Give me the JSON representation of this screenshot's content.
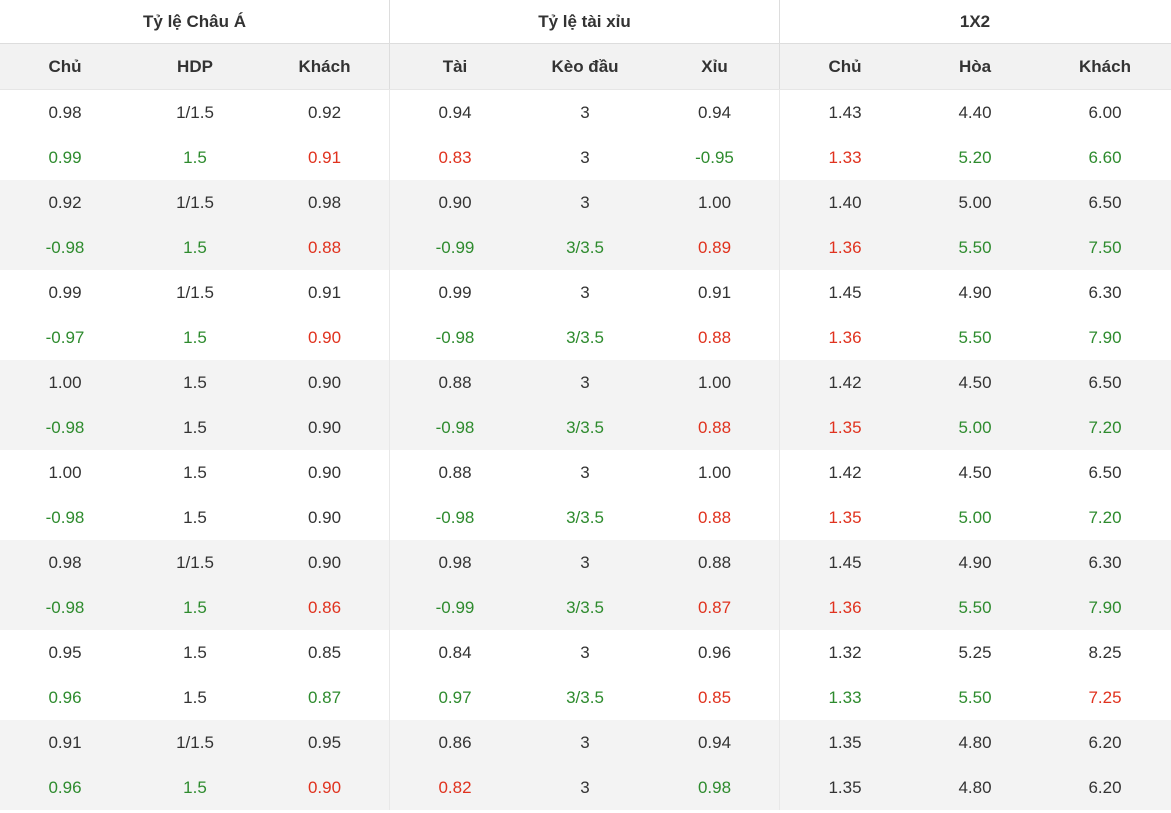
{
  "groups": [
    "Tỷ lệ Châu Á",
    "Tỷ lệ tài xỉu",
    "1X2"
  ],
  "columns": [
    "Chủ",
    "HDP",
    "Khách",
    "Tài",
    "Kèo đầu",
    "Xỉu",
    "Chủ",
    "Hòa",
    "Khách"
  ],
  "colors": {
    "up": "#2e8b2e",
    "down": "#e0321e",
    "alt_row": "#f3f3f3",
    "header_bg": "#f2f2f2"
  },
  "rows": [
    {
      "opening": [
        "0.98",
        "1/1.5",
        "0.92",
        "0.94",
        "3",
        "0.94",
        "1.43",
        "4.40",
        "6.00"
      ],
      "current": [
        {
          "v": "0.99",
          "t": "up"
        },
        {
          "v": "1.5",
          "t": "up"
        },
        {
          "v": "0.91",
          "t": "down"
        },
        {
          "v": "0.83",
          "t": "down"
        },
        {
          "v": "3",
          "t": ""
        },
        {
          "v": "-0.95",
          "t": "up"
        },
        {
          "v": "1.33",
          "t": "down"
        },
        {
          "v": "5.20",
          "t": "up"
        },
        {
          "v": "6.60",
          "t": "up"
        }
      ]
    },
    {
      "opening": [
        "0.92",
        "1/1.5",
        "0.98",
        "0.90",
        "3",
        "1.00",
        "1.40",
        "5.00",
        "6.50"
      ],
      "current": [
        {
          "v": "-0.98",
          "t": "up"
        },
        {
          "v": "1.5",
          "t": "up"
        },
        {
          "v": "0.88",
          "t": "down"
        },
        {
          "v": "-0.99",
          "t": "up"
        },
        {
          "v": "3/3.5",
          "t": "up"
        },
        {
          "v": "0.89",
          "t": "down"
        },
        {
          "v": "1.36",
          "t": "down"
        },
        {
          "v": "5.50",
          "t": "up"
        },
        {
          "v": "7.50",
          "t": "up"
        }
      ]
    },
    {
      "opening": [
        "0.99",
        "1/1.5",
        "0.91",
        "0.99",
        "3",
        "0.91",
        "1.45",
        "4.90",
        "6.30"
      ],
      "current": [
        {
          "v": "-0.97",
          "t": "up"
        },
        {
          "v": "1.5",
          "t": "up"
        },
        {
          "v": "0.90",
          "t": "down"
        },
        {
          "v": "-0.98",
          "t": "up"
        },
        {
          "v": "3/3.5",
          "t": "up"
        },
        {
          "v": "0.88",
          "t": "down"
        },
        {
          "v": "1.36",
          "t": "down"
        },
        {
          "v": "5.50",
          "t": "up"
        },
        {
          "v": "7.90",
          "t": "up"
        }
      ]
    },
    {
      "opening": [
        "1.00",
        "1.5",
        "0.90",
        "0.88",
        "3",
        "1.00",
        "1.42",
        "4.50",
        "6.50"
      ],
      "current": [
        {
          "v": "-0.98",
          "t": "up"
        },
        {
          "v": "1.5",
          "t": ""
        },
        {
          "v": "0.90",
          "t": ""
        },
        {
          "v": "-0.98",
          "t": "up"
        },
        {
          "v": "3/3.5",
          "t": "up"
        },
        {
          "v": "0.88",
          "t": "down"
        },
        {
          "v": "1.35",
          "t": "down"
        },
        {
          "v": "5.00",
          "t": "up"
        },
        {
          "v": "7.20",
          "t": "up"
        }
      ]
    },
    {
      "opening": [
        "1.00",
        "1.5",
        "0.90",
        "0.88",
        "3",
        "1.00",
        "1.42",
        "4.50",
        "6.50"
      ],
      "current": [
        {
          "v": "-0.98",
          "t": "up"
        },
        {
          "v": "1.5",
          "t": ""
        },
        {
          "v": "0.90",
          "t": ""
        },
        {
          "v": "-0.98",
          "t": "up"
        },
        {
          "v": "3/3.5",
          "t": "up"
        },
        {
          "v": "0.88",
          "t": "down"
        },
        {
          "v": "1.35",
          "t": "down"
        },
        {
          "v": "5.00",
          "t": "up"
        },
        {
          "v": "7.20",
          "t": "up"
        }
      ]
    },
    {
      "opening": [
        "0.98",
        "1/1.5",
        "0.90",
        "0.98",
        "3",
        "0.88",
        "1.45",
        "4.90",
        "6.30"
      ],
      "current": [
        {
          "v": "-0.98",
          "t": "up"
        },
        {
          "v": "1.5",
          "t": "up"
        },
        {
          "v": "0.86",
          "t": "down"
        },
        {
          "v": "-0.99",
          "t": "up"
        },
        {
          "v": "3/3.5",
          "t": "up"
        },
        {
          "v": "0.87",
          "t": "down"
        },
        {
          "v": "1.36",
          "t": "down"
        },
        {
          "v": "5.50",
          "t": "up"
        },
        {
          "v": "7.90",
          "t": "up"
        }
      ]
    },
    {
      "opening": [
        "0.95",
        "1.5",
        "0.85",
        "0.84",
        "3",
        "0.96",
        "1.32",
        "5.25",
        "8.25"
      ],
      "current": [
        {
          "v": "0.96",
          "t": "up"
        },
        {
          "v": "1.5",
          "t": ""
        },
        {
          "v": "0.87",
          "t": "up"
        },
        {
          "v": "0.97",
          "t": "up"
        },
        {
          "v": "3/3.5",
          "t": "up"
        },
        {
          "v": "0.85",
          "t": "down"
        },
        {
          "v": "1.33",
          "t": "up"
        },
        {
          "v": "5.50",
          "t": "up"
        },
        {
          "v": "7.25",
          "t": "down"
        }
      ]
    },
    {
      "opening": [
        "0.91",
        "1/1.5",
        "0.95",
        "0.86",
        "3",
        "0.94",
        "1.35",
        "4.80",
        "6.20"
      ],
      "current": [
        {
          "v": "0.96",
          "t": "up"
        },
        {
          "v": "1.5",
          "t": "up"
        },
        {
          "v": "0.90",
          "t": "down"
        },
        {
          "v": "0.82",
          "t": "down"
        },
        {
          "v": "3",
          "t": ""
        },
        {
          "v": "0.98",
          "t": "up"
        },
        {
          "v": "1.35",
          "t": ""
        },
        {
          "v": "4.80",
          "t": ""
        },
        {
          "v": "6.20",
          "t": ""
        }
      ]
    }
  ]
}
